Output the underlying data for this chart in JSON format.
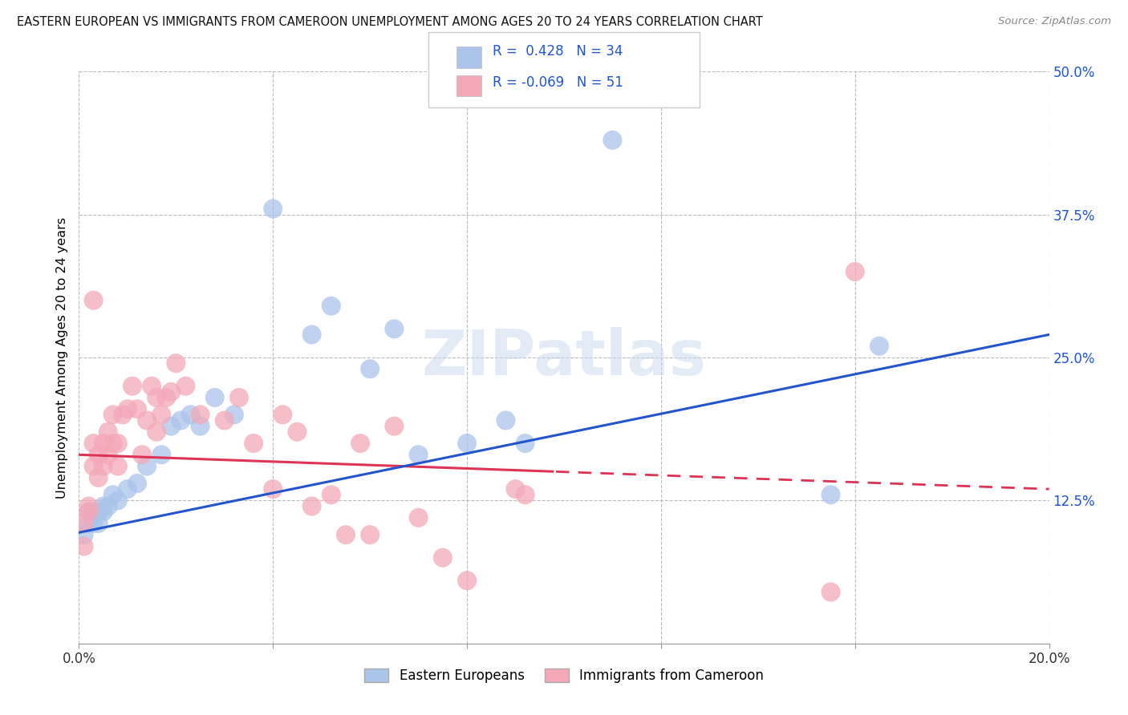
{
  "title": "EASTERN EUROPEAN VS IMMIGRANTS FROM CAMEROON UNEMPLOYMENT AMONG AGES 20 TO 24 YEARS CORRELATION CHART",
  "source": "Source: ZipAtlas.com",
  "ylabel": "Unemployment Among Ages 20 to 24 years",
  "xlim": [
    0.0,
    0.2
  ],
  "ylim": [
    0.0,
    0.5
  ],
  "x_ticks": [
    0.0,
    0.04,
    0.08,
    0.12,
    0.16,
    0.2
  ],
  "x_tick_labels": [
    "0.0%",
    "",
    "",
    "",
    "",
    "20.0%"
  ],
  "y_ticks": [
    0.0,
    0.125,
    0.25,
    0.375,
    0.5
  ],
  "y_tick_labels": [
    "",
    "12.5%",
    "25.0%",
    "37.5%",
    "50.0%"
  ],
  "R_blue": 0.428,
  "N_blue": 34,
  "R_pink": -0.069,
  "N_pink": 51,
  "blue_color": "#aac4ea",
  "pink_color": "#f4a8b8",
  "blue_line_color": "#2255cc",
  "pink_line_color": "#dd3355",
  "legend_label_blue": "Eastern Europeans",
  "legend_label_pink": "Immigrants from Cameroon",
  "watermark": "ZIPatlas",
  "blue_points_x": [
    0.001,
    0.002,
    0.002,
    0.003,
    0.003,
    0.004,
    0.004,
    0.005,
    0.005,
    0.006,
    0.007,
    0.008,
    0.01,
    0.012,
    0.014,
    0.017,
    0.019,
    0.021,
    0.023,
    0.025,
    0.028,
    0.032,
    0.04,
    0.048,
    0.052,
    0.06,
    0.065,
    0.07,
    0.08,
    0.088,
    0.092,
    0.11,
    0.155,
    0.165
  ],
  "blue_points_y": [
    0.095,
    0.105,
    0.115,
    0.115,
    0.105,
    0.115,
    0.105,
    0.12,
    0.115,
    0.12,
    0.13,
    0.125,
    0.135,
    0.14,
    0.155,
    0.165,
    0.19,
    0.195,
    0.2,
    0.19,
    0.215,
    0.2,
    0.38,
    0.27,
    0.295,
    0.24,
    0.275,
    0.165,
    0.175,
    0.195,
    0.175,
    0.44,
    0.13,
    0.26
  ],
  "pink_points_x": [
    0.001,
    0.001,
    0.002,
    0.002,
    0.003,
    0.003,
    0.003,
    0.004,
    0.004,
    0.005,
    0.005,
    0.006,
    0.006,
    0.007,
    0.007,
    0.008,
    0.008,
    0.009,
    0.01,
    0.011,
    0.012,
    0.013,
    0.014,
    0.015,
    0.016,
    0.016,
    0.017,
    0.018,
    0.019,
    0.02,
    0.022,
    0.025,
    0.03,
    0.033,
    0.036,
    0.04,
    0.042,
    0.045,
    0.048,
    0.052,
    0.055,
    0.058,
    0.06,
    0.065,
    0.07,
    0.075,
    0.08,
    0.09,
    0.092,
    0.155,
    0.16
  ],
  "pink_points_y": [
    0.085,
    0.105,
    0.115,
    0.12,
    0.3,
    0.155,
    0.175,
    0.145,
    0.165,
    0.155,
    0.175,
    0.165,
    0.185,
    0.175,
    0.2,
    0.155,
    0.175,
    0.2,
    0.205,
    0.225,
    0.205,
    0.165,
    0.195,
    0.225,
    0.185,
    0.215,
    0.2,
    0.215,
    0.22,
    0.245,
    0.225,
    0.2,
    0.195,
    0.215,
    0.175,
    0.135,
    0.2,
    0.185,
    0.12,
    0.13,
    0.095,
    0.175,
    0.095,
    0.19,
    0.11,
    0.075,
    0.055,
    0.135,
    0.13,
    0.045,
    0.325
  ]
}
